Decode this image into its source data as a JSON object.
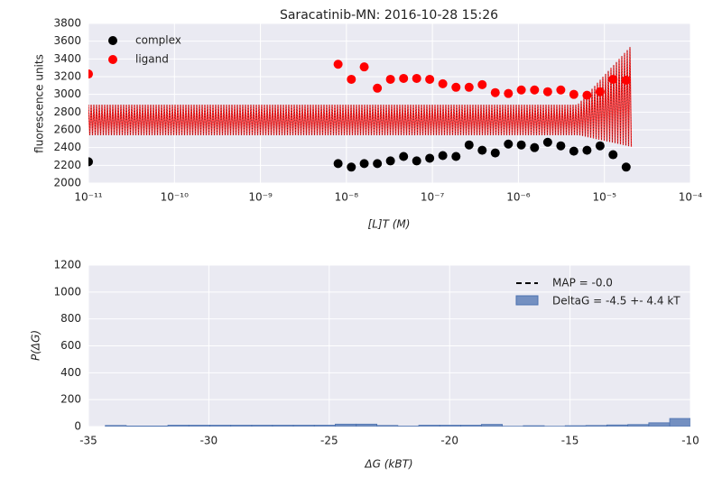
{
  "chart_data": [
    {
      "type": "scatter",
      "title": "Saracatinib-MN: 2016-10-28 15:26",
      "xlabel": "[L]T (M)",
      "ylabel": "fluorescence units",
      "xscale": "log",
      "xlim": [
        1e-11,
        0.0001
      ],
      "xticks": [
        {
          "value": 1e-11,
          "label": "10⁻¹¹"
        },
        {
          "value": 1e-10,
          "label": "10⁻¹⁰"
        },
        {
          "value": 1e-09,
          "label": "10⁻⁹"
        },
        {
          "value": 1e-08,
          "label": "10⁻⁸"
        },
        {
          "value": 1e-07,
          "label": "10⁻⁷"
        },
        {
          "value": 1e-06,
          "label": "10⁻⁶"
        },
        {
          "value": 1e-05,
          "label": "10⁻⁵"
        },
        {
          "value": 0.0001,
          "label": "10⁻⁴"
        }
      ],
      "ylim": [
        2000,
        3800
      ],
      "yticks": [
        2000,
        2200,
        2400,
        2600,
        2800,
        3000,
        3200,
        3400,
        3600,
        3800
      ],
      "grid": true,
      "legend": "upper left",
      "x": [
        1e-11,
        8e-09,
        1.14e-08,
        1.61e-08,
        2.29e-08,
        3.25e-08,
        4.62e-08,
        6.56e-08,
        9.3e-08,
        1.32e-07,
        1.88e-07,
        2.67e-07,
        3.79e-07,
        5.38e-07,
        7.64e-07,
        1.08e-06,
        1.54e-06,
        2.19e-06,
        3.11e-06,
        4.41e-06,
        6.27e-06,
        8.9e-06,
        1.26e-05,
        1.79e-05
      ],
      "series": [
        {
          "name": "complex",
          "color": "#000000",
          "values": [
            2240,
            2220,
            2180,
            2220,
            2220,
            2250,
            2300,
            2250,
            2280,
            2310,
            2300,
            2430,
            2370,
            2340,
            2440,
            2430,
            2400,
            2460,
            2420,
            2360,
            2370,
            2420,
            2320,
            2180
          ]
        },
        {
          "name": "ligand",
          "color": "#ff0000",
          "values": [
            3230,
            3340,
            3170,
            3310,
            3070,
            3170,
            3180,
            3180,
            3170,
            3120,
            3080,
            3080,
            3110,
            3020,
            3010,
            3050,
            3050,
            3030,
            3050,
            3000,
            2990,
            3030,
            3170,
            3160
          ]
        }
      ]
    },
    {
      "type": "histogram",
      "xlabel": "ΔG (kBT)",
      "ylabel": "P(ΔG)",
      "xlim": [
        -35,
        -10
      ],
      "xticks": [
        -35,
        -30,
        -25,
        -20,
        -15,
        -10
      ],
      "ylim": [
        0,
        1200
      ],
      "yticks": [
        0,
        200,
        400,
        600,
        800,
        1000,
        1200
      ],
      "grid": true,
      "legend": "upper right",
      "bins": [
        -34.3,
        -33.43,
        -32.56,
        -31.7,
        -30.83,
        -29.96,
        -29.09,
        -28.22,
        -27.36,
        -26.49,
        -25.62,
        -24.75,
        -23.88,
        -23.02,
        -22.15,
        -21.28,
        -20.41,
        -19.54,
        -18.68,
        -17.81,
        -16.94,
        -16.07,
        -15.2,
        -14.34,
        -13.47,
        -12.6,
        -11.73,
        -10.86,
        -9.99
      ],
      "values": [
        8,
        4,
        4,
        10,
        10,
        10,
        10,
        10,
        10,
        10,
        10,
        18,
        18,
        8,
        3,
        10,
        10,
        10,
        16,
        2,
        6,
        2,
        6,
        8,
        12,
        15,
        28,
        60
      ],
      "name": "DeltaG = -4.5 +- 4.4 kT",
      "color": "#4c72b0",
      "map_line": {
        "name": "MAP = -0.0",
        "value": 0,
        "color": "#000000"
      }
    }
  ]
}
